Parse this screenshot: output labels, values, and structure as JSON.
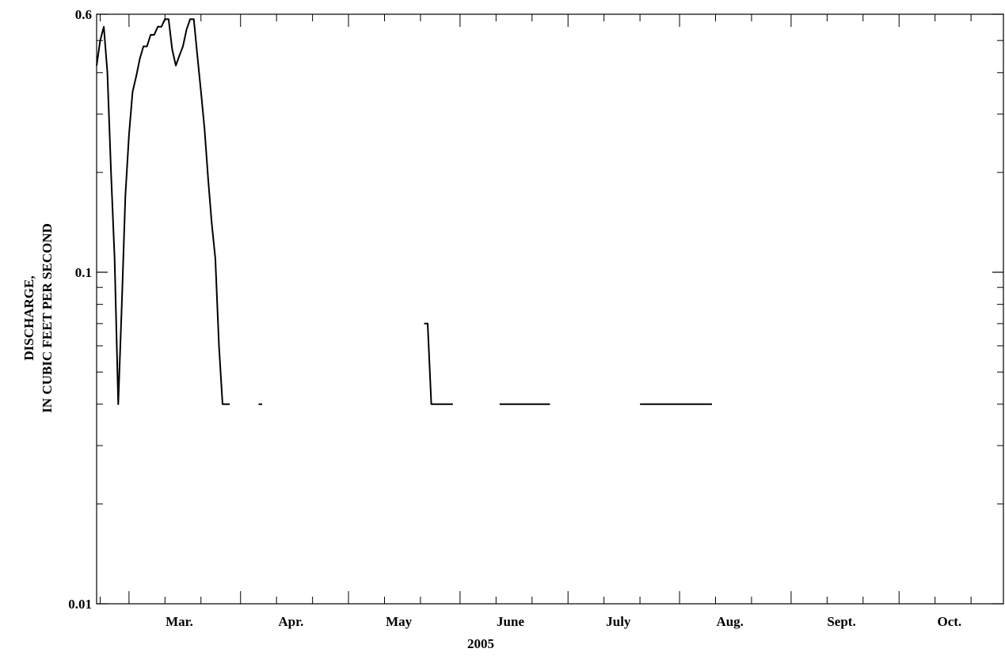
{
  "chart_data": {
    "type": "line",
    "title": "",
    "xlabel": "2005",
    "ylabel_lines": [
      "DISCHARGE,",
      "IN CUBIC FEET PER SECOND"
    ],
    "yscale": "log",
    "ylim": [
      0.01,
      0.6
    ],
    "yticks": [
      {
        "value": 0.6,
        "label": "0.6"
      },
      {
        "value": 0.1,
        "label": "0.1"
      },
      {
        "value": 0.01,
        "label": "0.01"
      }
    ],
    "xlim": [
      "2005-02-20",
      "2005-10-30"
    ],
    "months": [
      {
        "label": "Mar.",
        "date": "2005-03-01",
        "label_date": "2005-03-15"
      },
      {
        "label": "Apr.",
        "date": "2005-04-01",
        "label_date": "2005-04-15"
      },
      {
        "label": "May",
        "date": "2005-05-01",
        "label_date": "2005-05-15"
      },
      {
        "label": "June",
        "date": "2005-06-01",
        "label_date": "2005-06-15"
      },
      {
        "label": "July",
        "date": "2005-07-01",
        "label_date": "2005-07-15"
      },
      {
        "label": "Aug.",
        "date": "2005-08-01",
        "label_date": "2005-08-15"
      },
      {
        "label": "Sept.",
        "date": "2005-09-01",
        "label_date": "2005-09-15"
      },
      {
        "label": "Oct.",
        "date": "2005-10-01",
        "label_date": "2005-10-15"
      }
    ],
    "grid": false,
    "line_color": "#000000",
    "series": [
      {
        "segments": [
          [
            {
              "x": "2005-02-20",
              "y": 0.42
            },
            {
              "x": "2005-02-21",
              "y": 0.5
            },
            {
              "x": "2005-02-22",
              "y": 0.55
            },
            {
              "x": "2005-02-23",
              "y": 0.4
            },
            {
              "x": "2005-02-24",
              "y": 0.2
            },
            {
              "x": "2005-02-25",
              "y": 0.11
            },
            {
              "x": "2005-02-26",
              "y": 0.04
            },
            {
              "x": "2005-02-27",
              "y": 0.08
            },
            {
              "x": "2005-02-28",
              "y": 0.17
            },
            {
              "x": "2005-03-01",
              "y": 0.26
            },
            {
              "x": "2005-03-02",
              "y": 0.35
            },
            {
              "x": "2005-03-03",
              "y": 0.39
            },
            {
              "x": "2005-03-04",
              "y": 0.44
            },
            {
              "x": "2005-03-05",
              "y": 0.48
            },
            {
              "x": "2005-03-06",
              "y": 0.48
            },
            {
              "x": "2005-03-07",
              "y": 0.52
            },
            {
              "x": "2005-03-08",
              "y": 0.52
            },
            {
              "x": "2005-03-09",
              "y": 0.55
            },
            {
              "x": "2005-03-10",
              "y": 0.55
            },
            {
              "x": "2005-03-11",
              "y": 0.58
            },
            {
              "x": "2005-03-12",
              "y": 0.58
            },
            {
              "x": "2005-03-13",
              "y": 0.47
            },
            {
              "x": "2005-03-14",
              "y": 0.42
            },
            {
              "x": "2005-03-15",
              "y": 0.45
            },
            {
              "x": "2005-03-16",
              "y": 0.48
            },
            {
              "x": "2005-03-17",
              "y": 0.54
            },
            {
              "x": "2005-03-18",
              "y": 0.58
            },
            {
              "x": "2005-03-19",
              "y": 0.58
            },
            {
              "x": "2005-03-20",
              "y": 0.45
            },
            {
              "x": "2005-03-21",
              "y": 0.35
            },
            {
              "x": "2005-03-22",
              "y": 0.27
            },
            {
              "x": "2005-03-23",
              "y": 0.19
            },
            {
              "x": "2005-03-24",
              "y": 0.14
            },
            {
              "x": "2005-03-25",
              "y": 0.11
            },
            {
              "x": "2005-03-26",
              "y": 0.06
            },
            {
              "x": "2005-03-27",
              "y": 0.04
            },
            {
              "x": "2005-03-29",
              "y": 0.04
            }
          ],
          [
            {
              "x": "2005-04-06",
              "y": 0.04
            },
            {
              "x": "2005-04-07",
              "y": 0.04
            }
          ],
          [
            {
              "x": "2005-05-22",
              "y": 0.07
            },
            {
              "x": "2005-05-23",
              "y": 0.07
            },
            {
              "x": "2005-05-24",
              "y": 0.04
            },
            {
              "x": "2005-05-30",
              "y": 0.04
            }
          ],
          [
            {
              "x": "2005-06-12",
              "y": 0.04
            },
            {
              "x": "2005-06-26",
              "y": 0.04
            }
          ],
          [
            {
              "x": "2005-07-21",
              "y": 0.04
            },
            {
              "x": "2005-08-10",
              "y": 0.04
            }
          ]
        ]
      }
    ]
  }
}
